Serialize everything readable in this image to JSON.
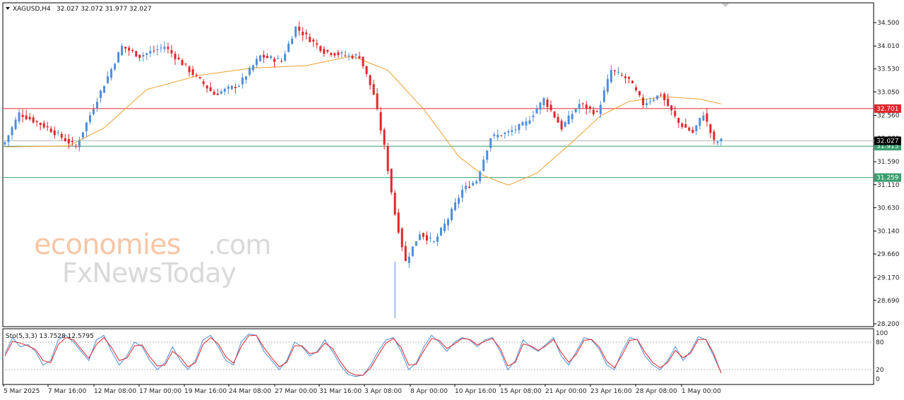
{
  "header": {
    "symbol_info": "XAGUSD,H4",
    "ohlc": "32.027 32.072 31.977 32.027"
  },
  "watermark": {
    "brand_orange": "economies",
    "brand_suffix": ".com",
    "brand_line2": "FxNewsToday"
  },
  "colors": {
    "bull_candle": "#4f8ed8",
    "bear_candle": "#e0262b",
    "moving_average": "#f0a030",
    "resistance_line": "#e0262b",
    "support_line": "#3a9e6e",
    "stoch_main": "#4f8ed8",
    "stoch_signal": "#e0262b"
  },
  "chart_data": [
    {
      "type": "candlestick",
      "title": "XAGUSD,H4",
      "x_tick_labels": [
        "5 Mar 2025",
        "7 Mar 16:00",
        "12 Mar 08:00",
        "17 Mar 00:00",
        "19 Mar 16:00",
        "24 Mar 08:00",
        "27 Mar 00:00",
        "31 Mar 16:00",
        "3 Apr 08:00",
        "8 Apr 00:00",
        "10 Apr 16:00",
        "15 Apr 08:00",
        "21 Apr 00:00",
        "23 Apr 16:00",
        "28 Apr 08:00",
        "1 May 00:00"
      ],
      "y_tick_labels": [
        "34.500",
        "34.010",
        "33.530",
        "33.050",
        "32.560",
        "32.080",
        "31.590",
        "31.110",
        "30.630",
        "30.140",
        "29.660",
        "29.170",
        "28.690",
        "28.200"
      ],
      "ylim": [
        28.2,
        34.5
      ],
      "last_price": 32.027,
      "horizontal_levels": [
        {
          "value": 32.701,
          "label": "32.701",
          "color": "#e0262b"
        },
        {
          "value": 31.915,
          "label": "31.915",
          "color": "#3a9e6e"
        },
        {
          "value": 31.259,
          "label": "31.259",
          "color": "#3a9e6e"
        }
      ],
      "price_path_anchors": [
        {
          "x": 0,
          "y": 32.0
        },
        {
          "x": 4,
          "y": 32.6
        },
        {
          "x": 12,
          "y": 32.3
        },
        {
          "x": 20,
          "y": 31.9
        },
        {
          "x": 26,
          "y": 32.9
        },
        {
          "x": 33,
          "y": 34.0
        },
        {
          "x": 38,
          "y": 33.8
        },
        {
          "x": 45,
          "y": 34.0
        },
        {
          "x": 52,
          "y": 33.5
        },
        {
          "x": 59,
          "y": 33.0
        },
        {
          "x": 66,
          "y": 33.2
        },
        {
          "x": 72,
          "y": 33.8
        },
        {
          "x": 78,
          "y": 33.7
        },
        {
          "x": 82,
          "y": 34.4
        },
        {
          "x": 90,
          "y": 33.9
        },
        {
          "x": 97,
          "y": 33.8
        },
        {
          "x": 100,
          "y": 33.8
        },
        {
          "x": 104,
          "y": 33.0
        },
        {
          "x": 107,
          "y": 31.9
        },
        {
          "x": 110,
          "y": 30.5
        },
        {
          "x": 113,
          "y": 29.5
        },
        {
          "x": 117,
          "y": 30.1
        },
        {
          "x": 121,
          "y": 29.9
        },
        {
          "x": 125,
          "y": 30.4
        },
        {
          "x": 129,
          "y": 31.0
        },
        {
          "x": 133,
          "y": 31.2
        },
        {
          "x": 137,
          "y": 32.1
        },
        {
          "x": 142,
          "y": 32.2
        },
        {
          "x": 147,
          "y": 32.4
        },
        {
          "x": 152,
          "y": 32.9
        },
        {
          "x": 157,
          "y": 32.3
        },
        {
          "x": 162,
          "y": 32.8
        },
        {
          "x": 167,
          "y": 32.6
        },
        {
          "x": 171,
          "y": 33.5
        },
        {
          "x": 176,
          "y": 33.3
        },
        {
          "x": 180,
          "y": 32.8
        },
        {
          "x": 185,
          "y": 33.0
        },
        {
          "x": 190,
          "y": 32.4
        },
        {
          "x": 194,
          "y": 32.2
        },
        {
          "x": 197,
          "y": 32.6
        },
        {
          "x": 200,
          "y": 32.0
        },
        {
          "x": 202,
          "y": 32.027
        }
      ],
      "moving_average_anchors": [
        {
          "x": 0,
          "y": 31.9
        },
        {
          "x": 18,
          "y": 31.92
        },
        {
          "x": 28,
          "y": 32.3
        },
        {
          "x": 40,
          "y": 33.1
        },
        {
          "x": 55,
          "y": 33.4
        },
        {
          "x": 70,
          "y": 33.55
        },
        {
          "x": 85,
          "y": 33.6
        },
        {
          "x": 98,
          "y": 33.8
        },
        {
          "x": 108,
          "y": 33.5
        },
        {
          "x": 118,
          "y": 32.7
        },
        {
          "x": 128,
          "y": 31.7
        },
        {
          "x": 135,
          "y": 31.3
        },
        {
          "x": 142,
          "y": 31.1
        },
        {
          "x": 150,
          "y": 31.35
        },
        {
          "x": 160,
          "y": 32.0
        },
        {
          "x": 168,
          "y": 32.55
        },
        {
          "x": 176,
          "y": 32.85
        },
        {
          "x": 186,
          "y": 32.95
        },
        {
          "x": 196,
          "y": 32.9
        },
        {
          "x": 202,
          "y": 32.8
        }
      ]
    },
    {
      "type": "line",
      "title": "Sto(5,3,3) 13.7528 12.5795",
      "y_tick_labels": [
        "100",
        "80",
        "20",
        "0"
      ],
      "ylim": [
        0,
        100
      ],
      "levels": [
        80,
        20
      ],
      "series": [
        {
          "values": [
            55,
            90,
            70,
            75,
            60,
            30,
            40,
            85,
            95,
            80,
            60,
            40,
            85,
            95,
            60,
            30,
            50,
            80,
            70,
            40,
            20,
            35,
            70,
            40,
            20,
            40,
            85,
            95,
            70,
            40,
            30,
            80,
            98,
            95,
            60,
            40,
            20,
            40,
            80,
            70,
            50,
            60,
            85,
            60,
            30,
            10,
            5,
            8,
            30,
            60,
            85,
            90,
            60,
            20,
            35,
            70,
            95,
            80,
            60,
            80,
            90,
            85,
            70,
            85,
            90,
            60,
            20,
            40,
            85,
            70,
            60,
            75,
            90,
            50,
            30,
            60,
            90,
            85,
            65,
            30,
            20,
            60,
            90,
            85,
            50,
            30,
            20,
            40,
            70,
            40,
            60,
            92,
            85,
            50,
            13.75
          ]
        },
        {
          "values": [
            50,
            82,
            78,
            72,
            64,
            40,
            35,
            75,
            90,
            85,
            65,
            45,
            75,
            90,
            68,
            40,
            45,
            72,
            74,
            48,
            28,
            30,
            60,
            48,
            26,
            35,
            75,
            90,
            76,
            48,
            34,
            70,
            94,
            95,
            68,
            46,
            26,
            36,
            72,
            72,
            55,
            58,
            78,
            66,
            38,
            16,
            8,
            8,
            24,
            52,
            78,
            88,
            68,
            30,
            32,
            62,
            88,
            84,
            66,
            76,
            88,
            86,
            74,
            82,
            88,
            66,
            28,
            36,
            76,
            72,
            62,
            72,
            86,
            58,
            36,
            54,
            84,
            86,
            70,
            38,
            24,
            52,
            84,
            86,
            58,
            36,
            24,
            36,
            62,
            46,
            56,
            86,
            86,
            56,
            12.58
          ]
        }
      ]
    }
  ]
}
